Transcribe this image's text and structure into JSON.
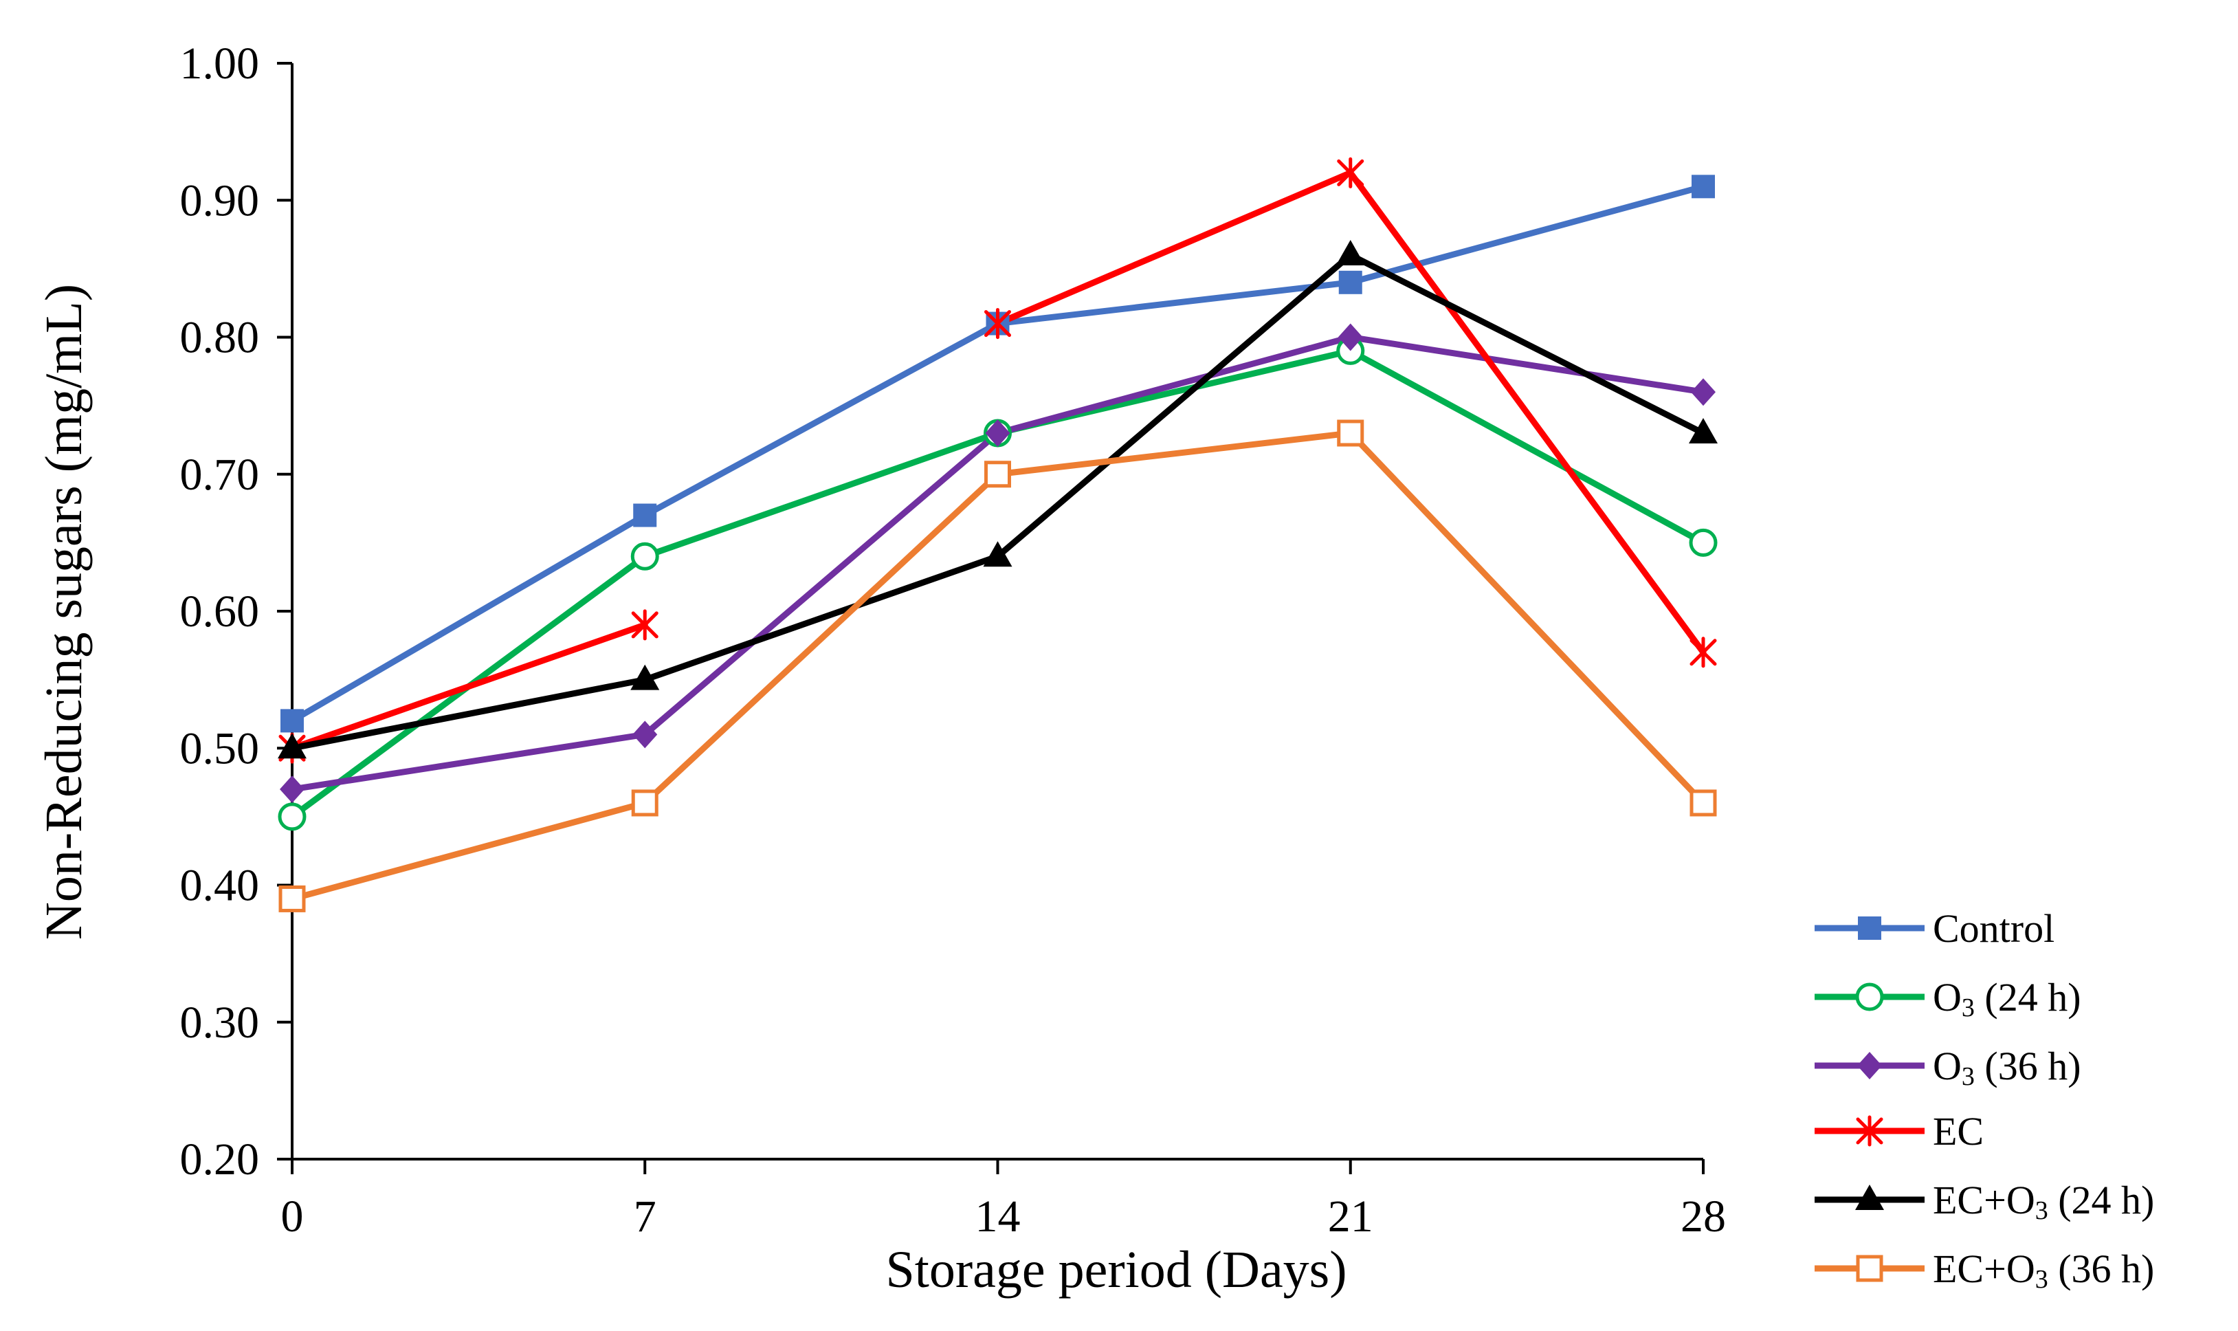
{
  "chart_data": {
    "type": "line",
    "title": "",
    "xlabel": "Storage period (Days)",
    "ylabel": "Non-Reducing sugars (mg/mL)",
    "x": [
      0,
      7,
      14,
      21,
      28
    ],
    "x_tick_labels": [
      "0",
      "7",
      "14",
      "21",
      "28"
    ],
    "ylim": [
      0.2,
      1.0
    ],
    "y_ticks": [
      0.2,
      0.3,
      0.4,
      0.5,
      0.6,
      0.7,
      0.8,
      0.9,
      1.0
    ],
    "y_tick_labels": [
      "0.20",
      "0.30",
      "0.40",
      "0.50",
      "0.60",
      "0.70",
      "0.80",
      "0.90",
      "1.00"
    ],
    "grid": false,
    "legend_position": "bottom-right",
    "series": [
      {
        "name": "Control",
        "label_main": "Control",
        "label_sub": "",
        "label_tail": "",
        "color": "#4472C4",
        "marker": "filled-square",
        "values": [
          0.52,
          0.67,
          0.81,
          0.84,
          0.91
        ]
      },
      {
        "name": "O3 (24 h)",
        "label_main": "O",
        "label_sub": "3",
        "label_tail": " (24 h)",
        "color": "#00B050",
        "marker": "open-circle",
        "values": [
          0.45,
          0.64,
          0.73,
          0.79,
          0.65
        ]
      },
      {
        "name": "O3 (36 h)",
        "label_main": "O",
        "label_sub": "3",
        "label_tail": " (36 h)",
        "color": "#7030A0",
        "marker": "filled-diamond",
        "values": [
          0.47,
          0.51,
          0.73,
          0.8,
          0.76
        ]
      },
      {
        "name": "EC",
        "label_main": "EC",
        "label_sub": "",
        "label_tail": "",
        "color": "#FF0000",
        "marker": "asterisk",
        "values": [
          0.5,
          0.59,
          0.81,
          0.92,
          0.57
        ],
        "break_after_index": 1
      },
      {
        "name": "EC+O3 (24 h)",
        "label_main": "EC+O",
        "label_sub": "3",
        "label_tail": " (24 h)",
        "color": "#000000",
        "marker": "filled-triangle",
        "values": [
          0.5,
          0.55,
          0.64,
          0.86,
          0.73
        ]
      },
      {
        "name": "EC+O3 (36 h)",
        "label_main": "EC+O",
        "label_sub": "3",
        "label_tail": " (36 h)",
        "color": "#ED7D31",
        "marker": "open-square",
        "values": [
          0.39,
          0.46,
          0.7,
          0.73,
          0.46
        ]
      }
    ]
  }
}
